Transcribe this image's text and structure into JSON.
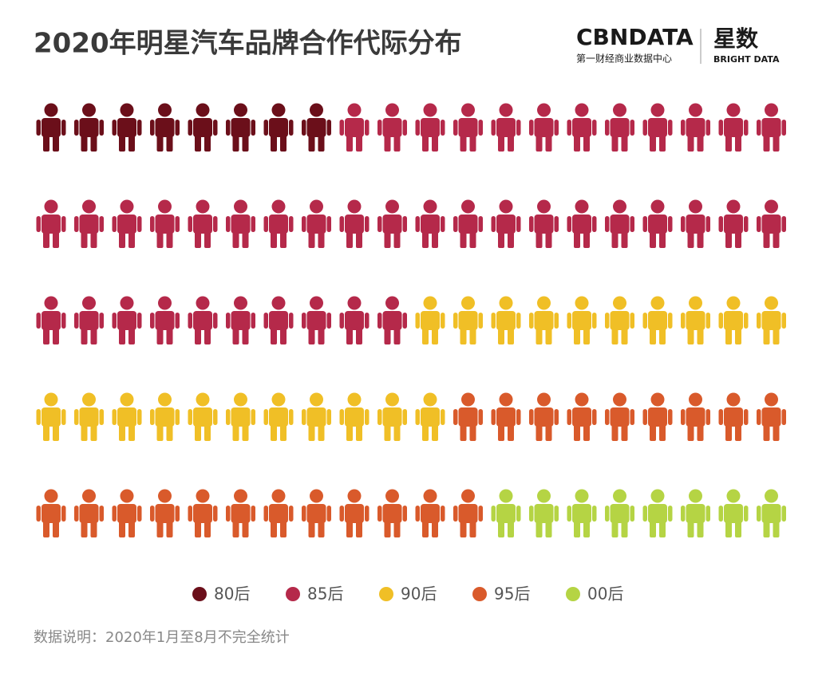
{
  "chart_data": {
    "type": "pictogram",
    "title": "2020年明星汽车品牌合作代际分布",
    "note": "数据说明：2020年1月至8月不完全统计",
    "logo": {
      "brand": "CBNDATA",
      "brand_sub": "第一财经商业数据中心",
      "name": "星数",
      "name_sub": "BRIGHT DATA"
    },
    "per_row": 20,
    "series": [
      {
        "name": "80后",
        "color": "#6b0f1a",
        "values": [
          8
        ]
      },
      {
        "name": "85后",
        "color": "#b5294a",
        "values": [
          42
        ]
      },
      {
        "name": "90后",
        "color": "#f0bf26",
        "values": [
          21
        ]
      },
      {
        "name": "95后",
        "color": "#d95a2b",
        "values": [
          21
        ]
      },
      {
        "name": "00后",
        "color": "#b5d444",
        "values": [
          8
        ]
      }
    ]
  }
}
